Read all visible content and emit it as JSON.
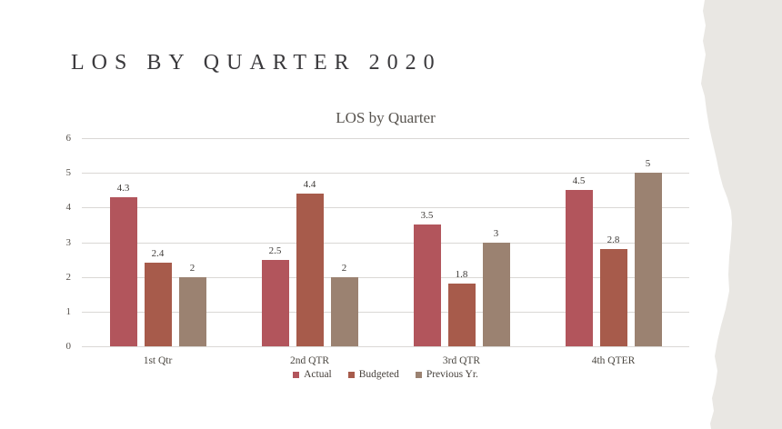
{
  "page": {
    "background_color": "#ffffff",
    "torn_edge_color": "#e9e7e3"
  },
  "header": {
    "title": "LOS BY QUARTER 2020"
  },
  "chart_data": {
    "type": "bar",
    "title": "LOS by Quarter",
    "categories": [
      "1st Qtr",
      "2nd QTR",
      "3rd QTR",
      "4th QTER"
    ],
    "series": [
      {
        "name": "Actual",
        "color": "#b2555c",
        "values": [
          4.3,
          2.5,
          3.5,
          4.5
        ]
      },
      {
        "name": "Budgeted",
        "color": "#a75b4b",
        "values": [
          2.4,
          4.4,
          1.8,
          2.8
        ]
      },
      {
        "name": "Previous Yr.",
        "color": "#9b8271",
        "values": [
          2,
          2,
          3,
          5
        ]
      }
    ],
    "ylim": [
      0,
      6
    ],
    "yticks": [
      0,
      1,
      2,
      3,
      4,
      5,
      6
    ],
    "grid": true,
    "data_labels": true,
    "legend_position": "bottom",
    "gridline_color": "#dad8d5"
  }
}
